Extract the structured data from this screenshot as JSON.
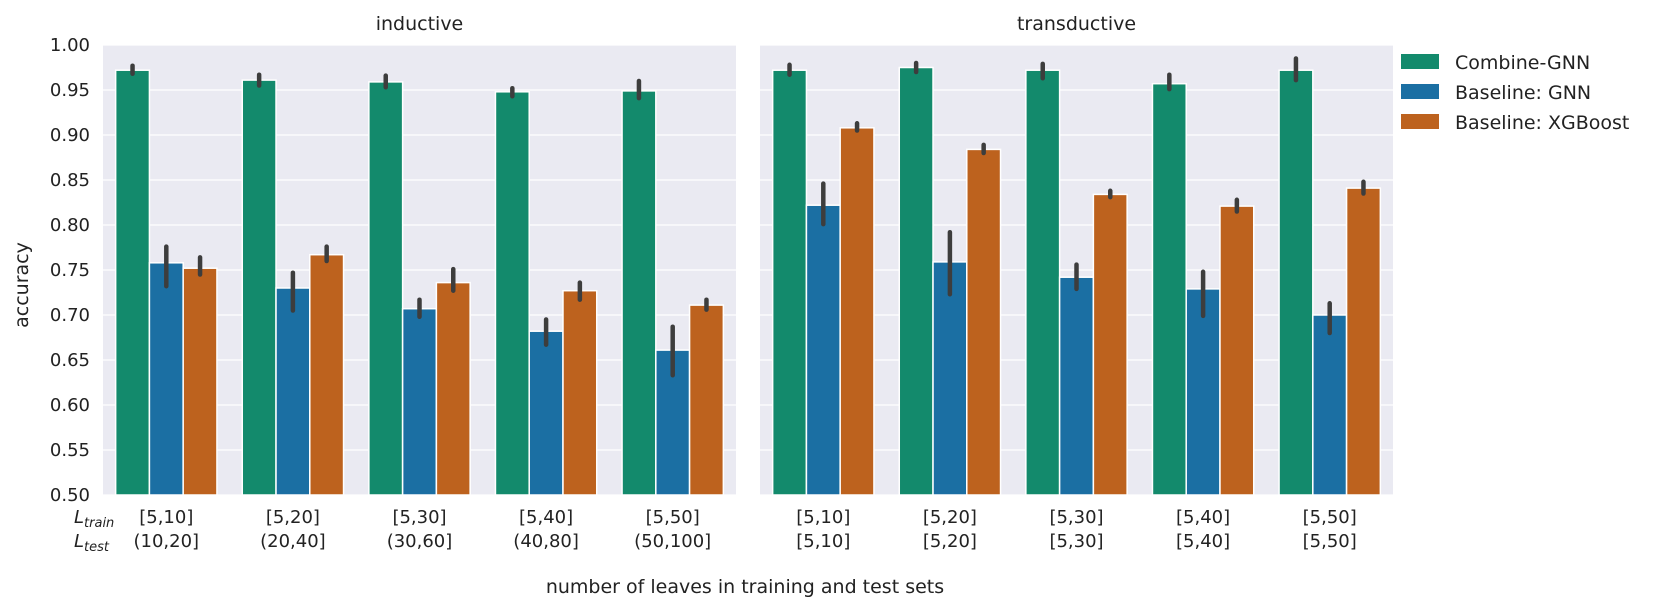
{
  "chart_data": {
    "type": "bar",
    "xlabel": "number of leaves in training and test sets",
    "ylabel": "accuracy",
    "ylim": [
      0.5,
      1.0
    ],
    "yticks": [
      "0.50",
      "0.55",
      "0.60",
      "0.65",
      "0.70",
      "0.75",
      "0.80",
      "0.85",
      "0.90",
      "0.95",
      "1.00"
    ],
    "grid": true,
    "legend": {
      "position": "right-top",
      "entries": [
        "Combine-GNN",
        "Baseline: GNN",
        "Baseline: XGBoost"
      ]
    },
    "colors": [
      "#138a6c",
      "#1b6fa3",
      "#bd621e"
    ],
    "row_labels": {
      "train_main": "L",
      "train_sub": "train",
      "test_main": "L",
      "test_sub": "test"
    },
    "panels": [
      {
        "title": "inductive",
        "categories": [
          {
            "train": "[5,10]",
            "test": "(10,20]"
          },
          {
            "train": "[5,20]",
            "test": "(20,40]"
          },
          {
            "train": "[5,30]",
            "test": "(30,60]"
          },
          {
            "train": "[5,40]",
            "test": "(40,80]"
          },
          {
            "train": "[5,50]",
            "test": "(50,100]"
          }
        ],
        "series": [
          {
            "name": "Combine-GNN",
            "values": [
              0.972,
              0.961,
              0.959,
              0.948,
              0.949
            ],
            "err": [
              [
                0.968,
                0.977
              ],
              [
                0.955,
                0.967
              ],
              [
                0.953,
                0.966
              ],
              [
                0.943,
                0.952
              ],
              [
                0.941,
                0.96
              ]
            ]
          },
          {
            "name": "Baseline: GNN",
            "values": [
              0.758,
              0.73,
              0.707,
              0.682,
              0.661
            ],
            "err": [
              [
                0.732,
                0.776
              ],
              [
                0.705,
                0.747
              ],
              [
                0.698,
                0.717
              ],
              [
                0.667,
                0.695
              ],
              [
                0.633,
                0.687
              ]
            ]
          },
          {
            "name": "Baseline: XGBoost",
            "values": [
              0.752,
              0.767,
              0.736,
              0.727,
              0.711
            ],
            "err": [
              [
                0.745,
                0.764
              ],
              [
                0.76,
                0.776
              ],
              [
                0.727,
                0.751
              ],
              [
                0.717,
                0.736
              ],
              [
                0.706,
                0.717
              ]
            ]
          }
        ]
      },
      {
        "title": "transductive",
        "categories": [
          {
            "train": "[5,10]",
            "test": "[5,10]"
          },
          {
            "train": "[5,20]",
            "test": "[5,20]"
          },
          {
            "train": "[5,30]",
            "test": "[5,30]"
          },
          {
            "train": "[5,40]",
            "test": "[5,40]"
          },
          {
            "train": "[5,50]",
            "test": "[5,50]"
          }
        ],
        "series": [
          {
            "name": "Combine-GNN",
            "values": [
              0.972,
              0.975,
              0.972,
              0.957,
              0.972
            ],
            "err": [
              [
                0.967,
                0.978
              ],
              [
                0.97,
                0.98
              ],
              [
                0.963,
                0.979
              ],
              [
                0.951,
                0.967
              ],
              [
                0.961,
                0.985
              ]
            ]
          },
          {
            "name": "Baseline: GNN",
            "values": [
              0.822,
              0.759,
              0.742,
              0.729,
              0.7
            ],
            "err": [
              [
                0.801,
                0.846
              ],
              [
                0.723,
                0.792
              ],
              [
                0.729,
                0.756
              ],
              [
                0.699,
                0.748
              ],
              [
                0.68,
                0.713
              ]
            ]
          },
          {
            "name": "Baseline: XGBoost",
            "values": [
              0.908,
              0.884,
              0.834,
              0.821,
              0.841
            ],
            "err": [
              [
                0.905,
                0.913
              ],
              [
                0.88,
                0.889
              ],
              [
                0.831,
                0.838
              ],
              [
                0.815,
                0.828
              ],
              [
                0.835,
                0.848
              ]
            ]
          }
        ]
      }
    ]
  }
}
